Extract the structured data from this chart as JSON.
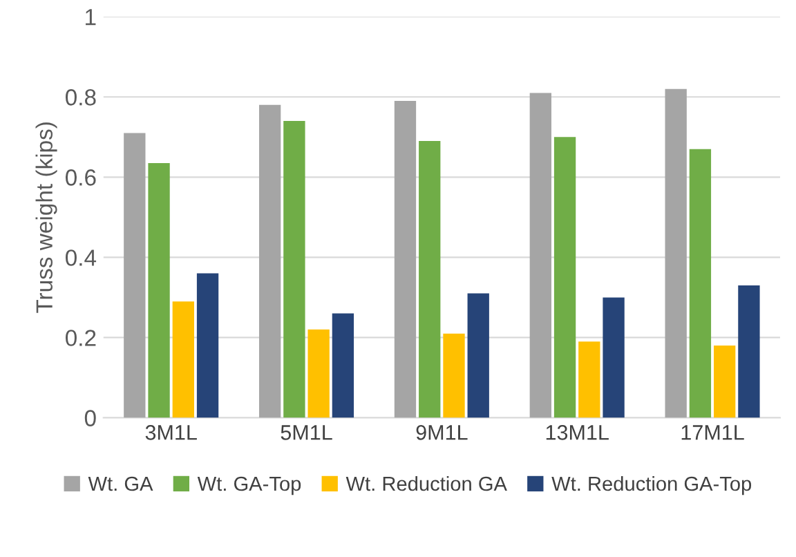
{
  "chart_data": {
    "type": "bar",
    "ylabel": "Truss weight (kips)",
    "categories": [
      "3M1L",
      "5M1L",
      "9M1L",
      "13M1L",
      "17M1L"
    ],
    "series": [
      {
        "name": "Wt. GA",
        "color": "#a5a5a5",
        "values": [
          0.71,
          0.78,
          0.79,
          0.81,
          0.82
        ]
      },
      {
        "name": "Wt. GA-Top",
        "color": "#70ad47",
        "values": [
          0.635,
          0.74,
          0.69,
          0.7,
          0.67
        ]
      },
      {
        "name": "Wt. Reduction GA",
        "color": "#ffc000",
        "values": [
          0.29,
          0.22,
          0.21,
          0.19,
          0.18
        ]
      },
      {
        "name": "Wt. Reduction GA-Top",
        "color": "#264478",
        "values": [
          0.36,
          0.26,
          0.31,
          0.3,
          0.33
        ]
      }
    ],
    "ylim": [
      0,
      1
    ],
    "yticks": [
      0,
      0.2,
      0.4,
      0.6,
      0.8,
      1
    ],
    "grid": "y",
    "legend": "bottom"
  }
}
